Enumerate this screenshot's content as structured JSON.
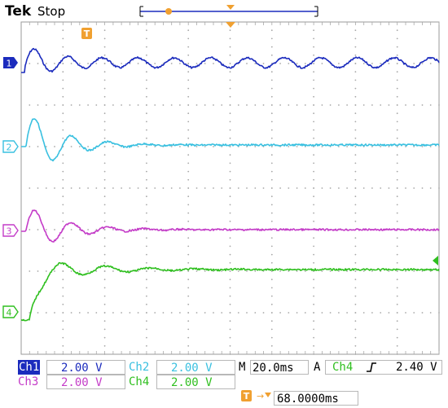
{
  "header": {
    "brand": "Tek",
    "run_state": "Stop"
  },
  "graticule": {
    "divisions_x": 10,
    "divisions_y": 8
  },
  "channels": [
    {
      "id": "1",
      "color": "#1b2bbd",
      "scale": "2.00 V"
    },
    {
      "id": "2",
      "color": "#39c0e0",
      "scale": "2.00 V"
    },
    {
      "id": "3",
      "color": "#c43cc8",
      "scale": "2.00 V"
    },
    {
      "id": "4",
      "color": "#2fbf1f",
      "scale": "2.00 V"
    }
  ],
  "trigger_marker_label": "T",
  "status": {
    "ch1_label": "Ch1",
    "ch1_scale": "2.00 V",
    "ch2_label": "Ch2",
    "ch2_scale": "2.00 V",
    "ch3_label": "Ch3",
    "ch3_scale": "2.00 V",
    "ch4_label": "Ch4",
    "ch4_scale": "2.00 V",
    "timebase_prefix": "M",
    "timebase": "20.0ms",
    "acq_prefix": "A",
    "trigger_source": "Ch4",
    "trigger_slope": "rising-edge-icon",
    "trigger_level": "2.40 V",
    "trigger_position": "68.0000ms"
  }
}
